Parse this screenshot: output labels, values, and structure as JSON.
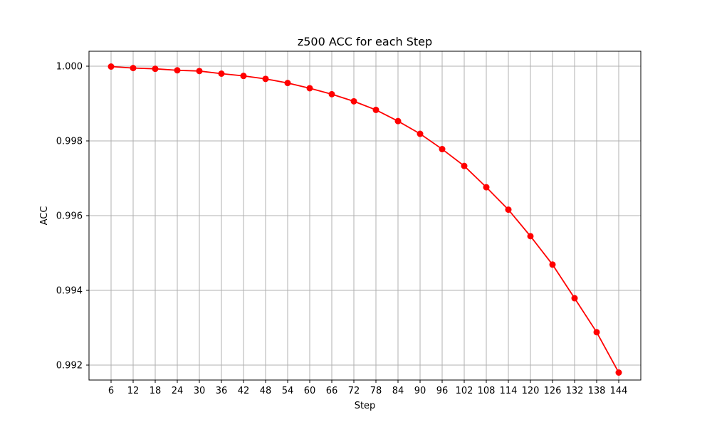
{
  "chart_data": {
    "type": "line",
    "title": "z500 ACC for each Step",
    "xlabel": "Step",
    "ylabel": "ACC",
    "x": [
      6,
      12,
      18,
      24,
      30,
      36,
      42,
      48,
      54,
      60,
      66,
      72,
      78,
      84,
      90,
      96,
      102,
      108,
      114,
      120,
      126,
      132,
      138,
      144
    ],
    "x_tick_labels": [
      "6",
      "12",
      "18",
      "24",
      "30",
      "36",
      "42",
      "48",
      "54",
      "60",
      "66",
      "72",
      "78",
      "84",
      "90",
      "96",
      "102",
      "108",
      "114",
      "120",
      "126",
      "132",
      "138",
      "144"
    ],
    "y_ticks": [
      0.992,
      0.994,
      0.996,
      0.998,
      1.0
    ],
    "y_tick_labels": [
      "0.992",
      "0.994",
      "0.996",
      "0.998",
      "1.000"
    ],
    "xlim": [
      0,
      150
    ],
    "ylim": [
      0.9916,
      1.0004
    ],
    "grid": true,
    "series": [
      {
        "color": "#ff0000",
        "marker": "circle",
        "values": [
          0.99999,
          0.99995,
          0.99993,
          0.99989,
          0.99987,
          0.9998,
          0.99974,
          0.99966,
          0.99955,
          0.99941,
          0.99925,
          0.99906,
          0.99883,
          0.99853,
          0.99819,
          0.99778,
          0.99733,
          0.99676,
          0.99616,
          0.99545,
          0.99469,
          0.99379,
          0.99288,
          0.9918
        ]
      }
    ]
  }
}
